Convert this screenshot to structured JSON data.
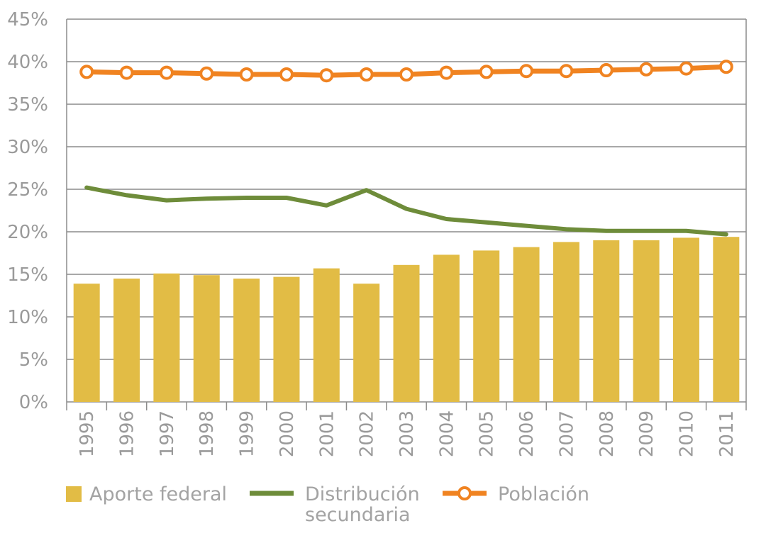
{
  "chart_data": {
    "type": "bar",
    "categories": [
      "1995",
      "1996",
      "1997",
      "1998",
      "1999",
      "2000",
      "2001",
      "2002",
      "2003",
      "2004",
      "2005",
      "2006",
      "2007",
      "2008",
      "2009",
      "2010",
      "2011"
    ],
    "series": [
      {
        "name": "Aporte federal",
        "type": "bar",
        "color": "#e2bc45",
        "values": [
          13.9,
          14.5,
          15.1,
          14.9,
          14.5,
          14.7,
          15.7,
          13.9,
          16.1,
          17.3,
          17.8,
          18.2,
          18.8,
          19.0,
          19.0,
          19.3,
          19.4
        ]
      },
      {
        "name": "Distribución secundaria",
        "name_lines": [
          "Distribución",
          "secundaria"
        ],
        "type": "line",
        "color": "#6e8c3a",
        "values": [
          25.2,
          24.3,
          23.7,
          23.9,
          24.0,
          24.0,
          23.1,
          24.9,
          22.7,
          21.5,
          21.1,
          20.7,
          20.3,
          20.1,
          20.1,
          20.1,
          19.7
        ]
      },
      {
        "name": "Población",
        "type": "line-marker",
        "color": "#f08321",
        "values": [
          38.8,
          38.7,
          38.7,
          38.6,
          38.5,
          38.5,
          38.4,
          38.5,
          38.5,
          38.7,
          38.8,
          38.9,
          38.9,
          39.0,
          39.1,
          39.2,
          39.4
        ]
      }
    ],
    "ylim": [
      0,
      45
    ],
    "yticks": [
      "0%",
      "5%",
      "10%",
      "15%",
      "20%",
      "25%",
      "30%",
      "35%",
      "40%",
      "45%"
    ],
    "ytick_values": [
      0,
      5,
      10,
      15,
      20,
      25,
      30,
      35,
      40,
      45
    ],
    "grid": true,
    "legend_position": "bottom"
  }
}
